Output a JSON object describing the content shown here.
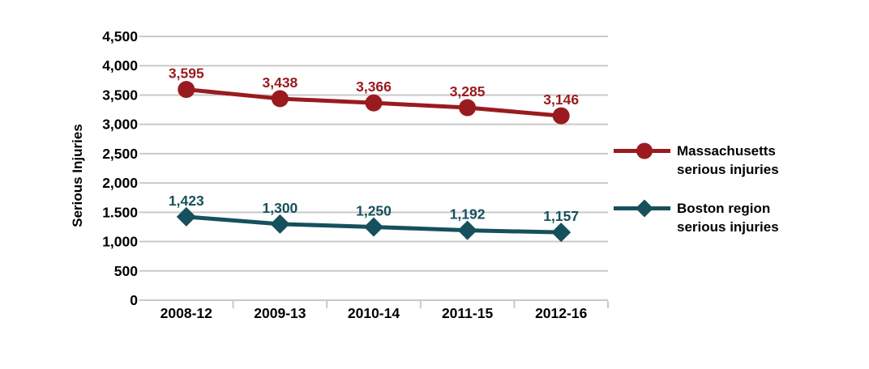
{
  "chart_data": {
    "type": "line",
    "title": "",
    "ylabel": "Serious Injuries",
    "xlabel": "",
    "categories": [
      "2008-12",
      "2009-13",
      "2010-14",
      "2011-15",
      "2012-16"
    ],
    "ylim": [
      0,
      4500
    ],
    "ytick_step": 500,
    "ytick_labels": [
      "0",
      "500",
      "1,000",
      "1.500",
      "2,000",
      "2,500",
      "3,000",
      "3,500",
      "4,000",
      "4,500"
    ],
    "grid": "horizontal-gridlines-on",
    "legend_position": "right",
    "gridline_color": "#C9C9C9",
    "text_color": "#000000",
    "series": [
      {
        "name": "Massachusetts serious injuries",
        "label_lines": [
          "Massachusetts",
          "serious injuries"
        ],
        "marker": "circle",
        "color": "#9A1B1F",
        "values": [
          3595,
          3438,
          3366,
          3285,
          3146
        ],
        "value_labels": [
          "3,595",
          "3,438",
          "3,366",
          "3,285",
          "3,146"
        ]
      },
      {
        "name": "Boston region serious injuries",
        "label_lines": [
          "Boston region",
          "serious injuries"
        ],
        "marker": "diamond",
        "color": "#16505C",
        "values": [
          1423,
          1300,
          1250,
          1192,
          1157
        ],
        "value_labels": [
          "1,423",
          "1,300",
          "1,250",
          "1,192",
          "1,157"
        ]
      }
    ]
  }
}
